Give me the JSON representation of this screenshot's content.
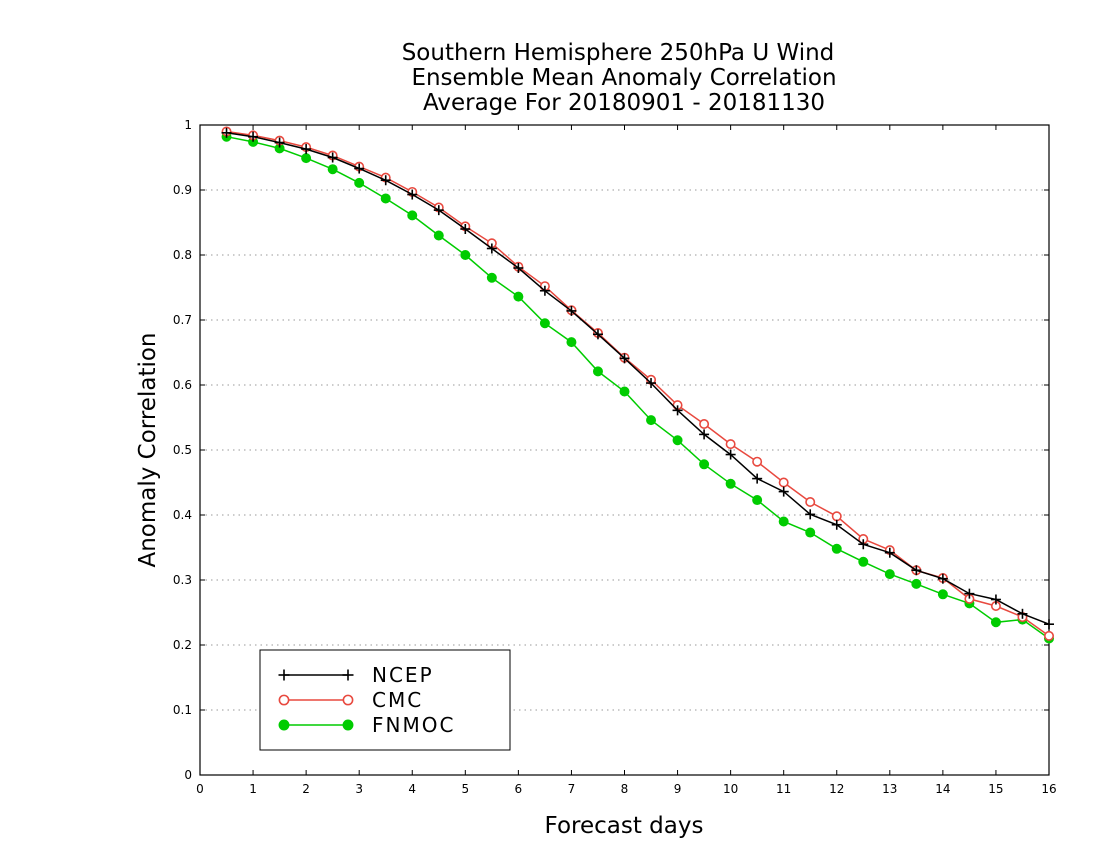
{
  "chart_data": {
    "type": "line",
    "title": [
      "Southern Hemisphere 250hPa U Wind",
      "Ensemble Mean Anomaly Correlation",
      "Average For 20180901 - 20181130"
    ],
    "xlabel": "Forecast days",
    "ylabel": "Anomaly Correlation",
    "xlim": [
      0,
      16
    ],
    "ylim": [
      0,
      1
    ],
    "xticks": [
      "0",
      "1",
      "2",
      "3",
      "4",
      "5",
      "6",
      "7",
      "8",
      "9",
      "10",
      "11",
      "12",
      "13",
      "14",
      "15",
      "16"
    ],
    "yticks": [
      "0",
      "0.1",
      "0.2",
      "0.3",
      "0.4",
      "0.5",
      "0.6",
      "0.7",
      "0.8",
      "0.9",
      "1"
    ],
    "grid": "horizontal dotted",
    "legend_position": "bottom-left",
    "x": [
      0.5,
      1,
      1.5,
      2,
      2.5,
      3,
      3.5,
      4,
      4.5,
      5,
      5.5,
      6,
      6.5,
      7,
      7.5,
      8,
      8.5,
      9,
      9.5,
      10,
      10.5,
      11,
      11.5,
      12,
      12.5,
      13,
      13.5,
      14,
      14.5,
      15,
      15.5,
      16
    ],
    "series": [
      {
        "name": "NCEP",
        "color": "#000000",
        "marker": "plus",
        "values": [
          0.988,
          0.982,
          0.973,
          0.963,
          0.95,
          0.933,
          0.915,
          0.893,
          0.869,
          0.84,
          0.81,
          0.78,
          0.745,
          0.714,
          0.678,
          0.641,
          0.603,
          0.561,
          0.524,
          0.493,
          0.456,
          0.436,
          0.401,
          0.385,
          0.355,
          0.342,
          0.315,
          0.302,
          0.279,
          0.27,
          0.248,
          0.232
        ]
      },
      {
        "name": "CMC",
        "color": "#e8493f",
        "marker": "open-circle",
        "values": [
          0.99,
          0.984,
          0.976,
          0.966,
          0.953,
          0.936,
          0.919,
          0.897,
          0.873,
          0.844,
          0.818,
          0.782,
          0.752,
          0.715,
          0.68,
          0.642,
          0.608,
          0.569,
          0.54,
          0.509,
          0.482,
          0.45,
          0.42,
          0.398,
          0.363,
          0.346,
          0.315,
          0.303,
          0.271,
          0.26,
          0.243,
          0.214
        ]
      },
      {
        "name": "FNMOC",
        "color": "#00cc00",
        "marker": "filled-circle",
        "values": [
          0.982,
          0.974,
          0.964,
          0.949,
          0.932,
          0.911,
          0.887,
          0.861,
          0.83,
          0.8,
          0.765,
          0.736,
          0.695,
          0.666,
          0.621,
          0.59,
          0.546,
          0.515,
          0.478,
          0.448,
          0.423,
          0.39,
          0.373,
          0.348,
          0.328,
          0.309,
          0.294,
          0.278,
          0.264,
          0.235,
          0.239,
          0.21
        ]
      }
    ]
  }
}
